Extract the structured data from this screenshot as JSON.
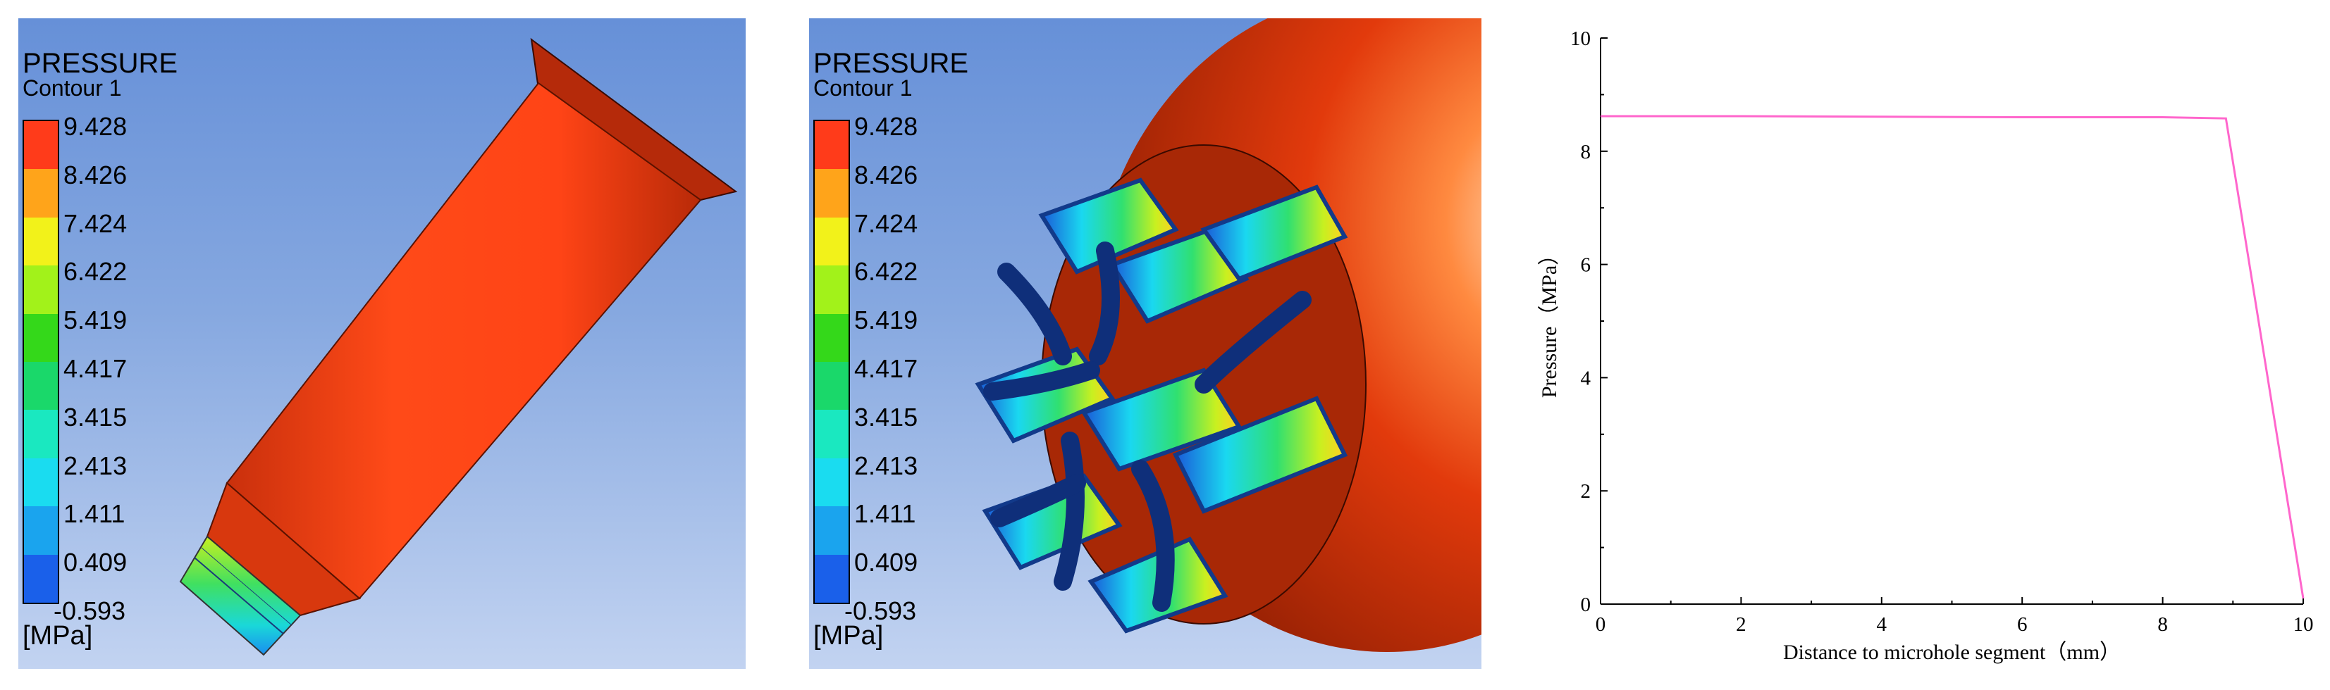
{
  "panels": {
    "a": {
      "title": "PRESSURE",
      "subtitle": "Contour 1",
      "unit": "[MPa]",
      "legend_values": [
        "9.428",
        "8.426",
        "7.424",
        "6.422",
        "5.419",
        "4.417",
        "3.415",
        "2.413",
        "1.411",
        "0.409",
        "-0.593"
      ]
    },
    "b": {
      "title": "PRESSURE",
      "subtitle": "Contour 1",
      "unit": "[MPa]",
      "legend_values": [
        "9.428",
        "8.426",
        "7.424",
        "6.422",
        "5.419",
        "4.417",
        "3.415",
        "2.413",
        "1.411",
        "0.409",
        "-0.593"
      ]
    }
  },
  "legend_colors": [
    "#ff3b1a",
    "#ffa41a",
    "#f2f21a",
    "#a2f21a",
    "#34d81a",
    "#1ad86a",
    "#1ae8c0",
    "#1adcf0",
    "#1aa4ee",
    "#1a60ea"
  ],
  "chart_data": {
    "type": "line",
    "xlabel": "Distance to microhole segment（mm）",
    "ylabel": "Pressure（MPa）",
    "xlim": [
      0,
      10
    ],
    "ylim": [
      0,
      10
    ],
    "x_ticks": [
      0,
      2,
      4,
      6,
      8,
      10
    ],
    "y_ticks": [
      0,
      2,
      4,
      6,
      8,
      10
    ],
    "grid": false,
    "line_color": "#ff66cc",
    "series": [
      {
        "x": [
          0,
          2,
          4,
          6,
          8,
          8.9,
          10
        ],
        "y": [
          8.62,
          8.62,
          8.61,
          8.6,
          8.6,
          8.58,
          0.1
        ]
      }
    ]
  }
}
